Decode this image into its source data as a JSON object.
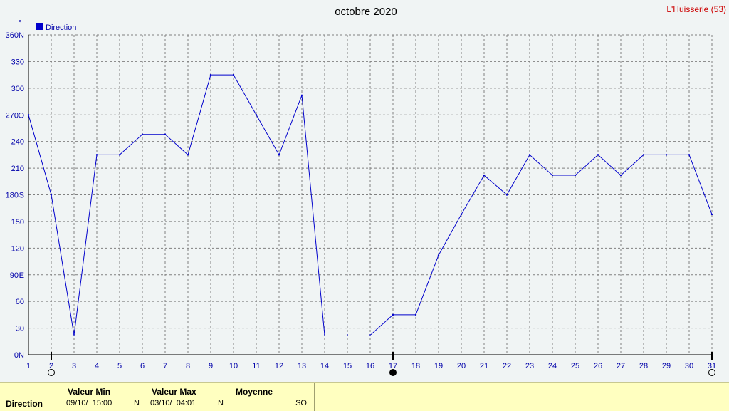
{
  "station": "L'Huisserie (53)",
  "chart_data": {
    "type": "line",
    "title": "octobre 2020",
    "ylabel": "°",
    "ylim": [
      0,
      360
    ],
    "y_ticks": [
      {
        "value": 0,
        "label": "0",
        "dir": "N"
      },
      {
        "value": 30,
        "label": "30",
        "dir": ""
      },
      {
        "value": 60,
        "label": "60",
        "dir": ""
      },
      {
        "value": 90,
        "label": "90",
        "dir": "E"
      },
      {
        "value": 120,
        "label": "120",
        "dir": ""
      },
      {
        "value": 150,
        "label": "150",
        "dir": ""
      },
      {
        "value": 180,
        "label": "180",
        "dir": "S"
      },
      {
        "value": 210,
        "label": "210",
        "dir": ""
      },
      {
        "value": 240,
        "label": "240",
        "dir": ""
      },
      {
        "value": 270,
        "label": "270",
        "dir": "O"
      },
      {
        "value": 300,
        "label": "300",
        "dir": ""
      },
      {
        "value": 330,
        "label": "330",
        "dir": ""
      },
      {
        "value": 360,
        "label": "360",
        "dir": "N"
      }
    ],
    "x": [
      1,
      2,
      3,
      4,
      5,
      6,
      7,
      8,
      9,
      10,
      11,
      12,
      13,
      14,
      15,
      16,
      17,
      18,
      19,
      20,
      21,
      22,
      23,
      24,
      25,
      26,
      27,
      28,
      29,
      30,
      31
    ],
    "xlim": [
      1,
      31
    ],
    "grid": true,
    "legend": "top-left",
    "moon_phases": [
      {
        "day": 2,
        "phase": "full"
      },
      {
        "day": 17,
        "phase": "new"
      },
      {
        "day": 31,
        "phase": "full"
      }
    ],
    "series": [
      {
        "name": "Direction",
        "color": "#0000cc",
        "values": [
          270,
          180,
          22,
          225,
          225,
          248,
          248,
          225,
          315,
          315,
          270,
          225,
          292,
          22,
          22,
          22,
          45,
          45,
          112,
          158,
          202,
          180,
          225,
          202,
          202,
          225,
          202,
          225,
          225,
          225,
          158
        ]
      }
    ]
  },
  "stats": {
    "row_label": "Direction",
    "min": {
      "label": "Valeur Min",
      "date": "09/10/  15:00",
      "dir": "N"
    },
    "max": {
      "label": "Valeur Max",
      "date": "03/10/  04:01",
      "dir": "N"
    },
    "avg": {
      "label": "Moyenne",
      "dir": "SO"
    }
  }
}
